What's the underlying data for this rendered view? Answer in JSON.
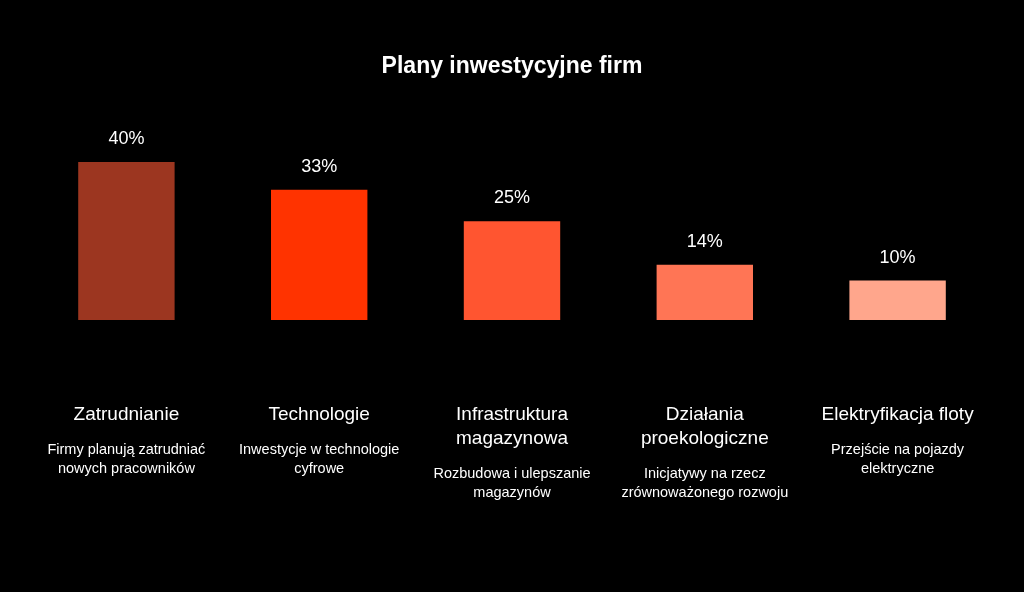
{
  "chart_data": {
    "type": "bar",
    "title": "Plany inwestycyjne firm",
    "categories": [
      "Zatrudnianie",
      "Technologie",
      "Infrastruktura magazynowa",
      "Działania proekologiczne",
      "Elektryfikacja floty"
    ],
    "values": [
      40,
      33,
      25,
      14,
      10
    ],
    "colors": [
      "#9c3620",
      "#ff3300",
      "#ff5530",
      "#ff7555",
      "#ffa68c"
    ],
    "value_labels": [
      "40%",
      "33%",
      "25%",
      "14%",
      "10%"
    ],
    "annotations": [
      "Firmy planują zatrudniać nowych pracowników",
      "Inwestycje w technologie cyfrowe",
      "Rozbudowa i ulepszanie magazynów",
      "Inicjatywy na rzecz zrównoważonego rozwoju",
      "Przejście na pojazdy elektryczne"
    ]
  }
}
